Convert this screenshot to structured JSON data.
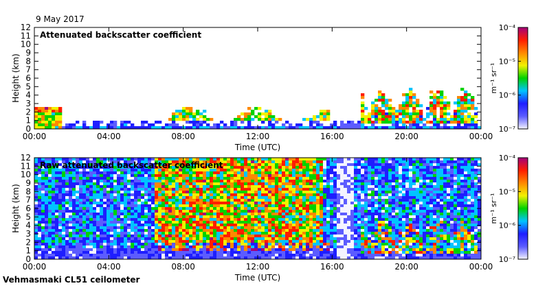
{
  "date": "9 May 2017",
  "footer": "Vehmasmaki CL51 ceilometer",
  "colorbar": {
    "unit_label": "m⁻¹ sr⁻¹",
    "ticks": [
      {
        "label": "10⁻⁴",
        "value": -4
      },
      {
        "label": "10⁻⁵",
        "value": -5
      },
      {
        "label": "10⁻⁶",
        "value": -6
      },
      {
        "label": "10⁻⁷",
        "value": -7
      }
    ],
    "range_log10": [
      -7,
      -4
    ],
    "colors": [
      "#f4f4ff",
      "#5c5cff",
      "#1e1eff",
      "#00c4ff",
      "#00d200",
      "#f2f200",
      "#ff8800",
      "#ff1e00",
      "#a4007a"
    ]
  },
  "chart_data": [
    {
      "type": "heatmap",
      "title": "Attenuated backscatter coefficient",
      "xlabel": "Time (UTC)",
      "ylabel": "Height (km)",
      "xlim": [
        0,
        24
      ],
      "ylim": [
        0,
        12
      ],
      "x_ticks": [
        {
          "label": "00:00",
          "value": 0
        },
        {
          "label": "04:00",
          "value": 4
        },
        {
          "label": "08:00",
          "value": 8
        },
        {
          "label": "12:00",
          "value": 12
        },
        {
          "label": "16:00",
          "value": 16
        },
        {
          "label": "20:00",
          "value": 20
        },
        {
          "label": "00:00",
          "value": 24
        }
      ],
      "y_ticks": [
        0,
        1,
        2,
        3,
        4,
        5,
        6,
        7,
        8,
        9,
        10,
        11,
        12
      ],
      "features": [
        {
          "name": "residual layer",
          "t0": 0.0,
          "t1": 1.5,
          "h0": 0.0,
          "h1": 2.5
        },
        {
          "name": "boundary layer top 06-16 UTC",
          "t0": 6.5,
          "t1": 15.9,
          "h0": 1.0,
          "h1": 2.6
        },
        {
          "name": "low cloud / gap",
          "t0": 16.6,
          "t1": 17.5,
          "h0": 0.0,
          "h1": 0.6
        },
        {
          "name": "convective clouds",
          "t0": 17.5,
          "t1": 23.9,
          "h0": 0.5,
          "h1": 5.5
        }
      ]
    },
    {
      "type": "heatmap",
      "title": "Raw attenuated backscatter coefficient",
      "xlabel": "Time (UTC)",
      "ylabel": "Height (km)",
      "xlim": [
        0,
        24
      ],
      "ylim": [
        0,
        12
      ],
      "x_ticks": [
        {
          "label": "00:00",
          "value": 0
        },
        {
          "label": "04:00",
          "value": 4
        },
        {
          "label": "08:00",
          "value": 8
        },
        {
          "label": "12:00",
          "value": 12
        },
        {
          "label": "16:00",
          "value": 16
        },
        {
          "label": "20:00",
          "value": 20
        },
        {
          "label": "00:00",
          "value": 24
        }
      ],
      "y_ticks": [
        0,
        1,
        2,
        3,
        4,
        5,
        6,
        7,
        8,
        9,
        10,
        11,
        12
      ],
      "features": [
        {
          "name": "daytime noise",
          "t0": 6.5,
          "t1": 15.5,
          "h0": 2.0,
          "h1": 12.0
        },
        {
          "name": "precipitation column",
          "t0": 16.3,
          "t1": 17.2,
          "h0": 0.0,
          "h1": 12.0
        },
        {
          "name": "convective clouds",
          "t0": 17.5,
          "t1": 23.9,
          "h0": 0.5,
          "h1": 5.5
        }
      ]
    }
  ]
}
